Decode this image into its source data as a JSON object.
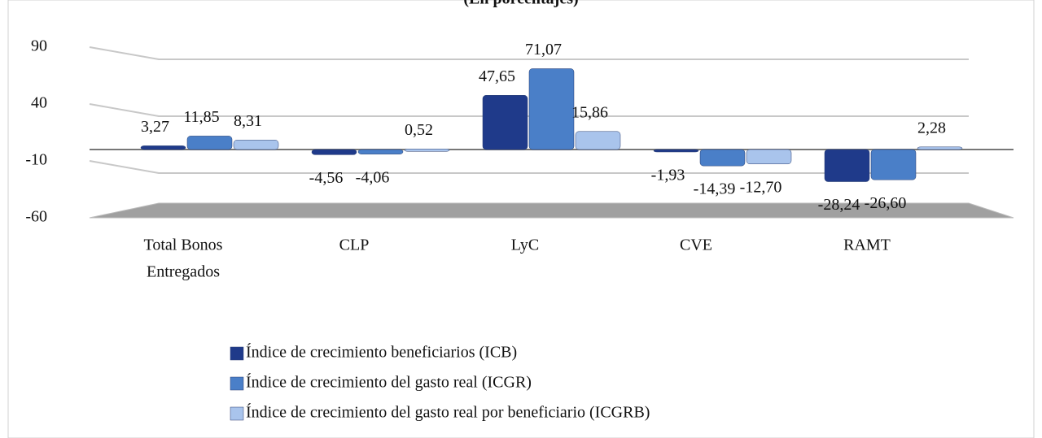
{
  "chart_data": {
    "type": "bar",
    "title": "(En porcentajes)",
    "categories": [
      [
        "Total Bonos",
        "Entregados"
      ],
      "CLP",
      "LyC",
      "CVE",
      "RAMT"
    ],
    "series": [
      {
        "name": "Índice de crecimiento beneficiarios (ICB)",
        "color": "#1f3a8a",
        "values": [
          3.27,
          -4.56,
          47.65,
          -1.93,
          -28.24
        ],
        "value_labels": [
          "3,27",
          "-4,56",
          "47,65",
          "-1,93",
          "-28,24"
        ]
      },
      {
        "name": "Índice de crecimiento del gasto real (ICGR)",
        "color": "#4a7fc8",
        "values": [
          11.85,
          -4.06,
          71.07,
          -14.39,
          -26.6
        ],
        "value_labels": [
          "11,85",
          "-4,06",
          "71,07",
          "-14,39",
          "-26,60"
        ]
      },
      {
        "name": "Índice de crecimiento del gasto real por beneficiario (ICGRB)",
        "color": "#a9c4ec",
        "values": [
          8.31,
          0.52,
          15.86,
          -12.7,
          2.28
        ],
        "value_labels": [
          "8,31",
          "0,52",
          "15,86",
          "-12,70",
          "2,28"
        ]
      }
    ],
    "ylim": [
      -60,
      90
    ],
    "yticks": [
      -60,
      -10,
      40,
      90
    ],
    "grid": true
  }
}
